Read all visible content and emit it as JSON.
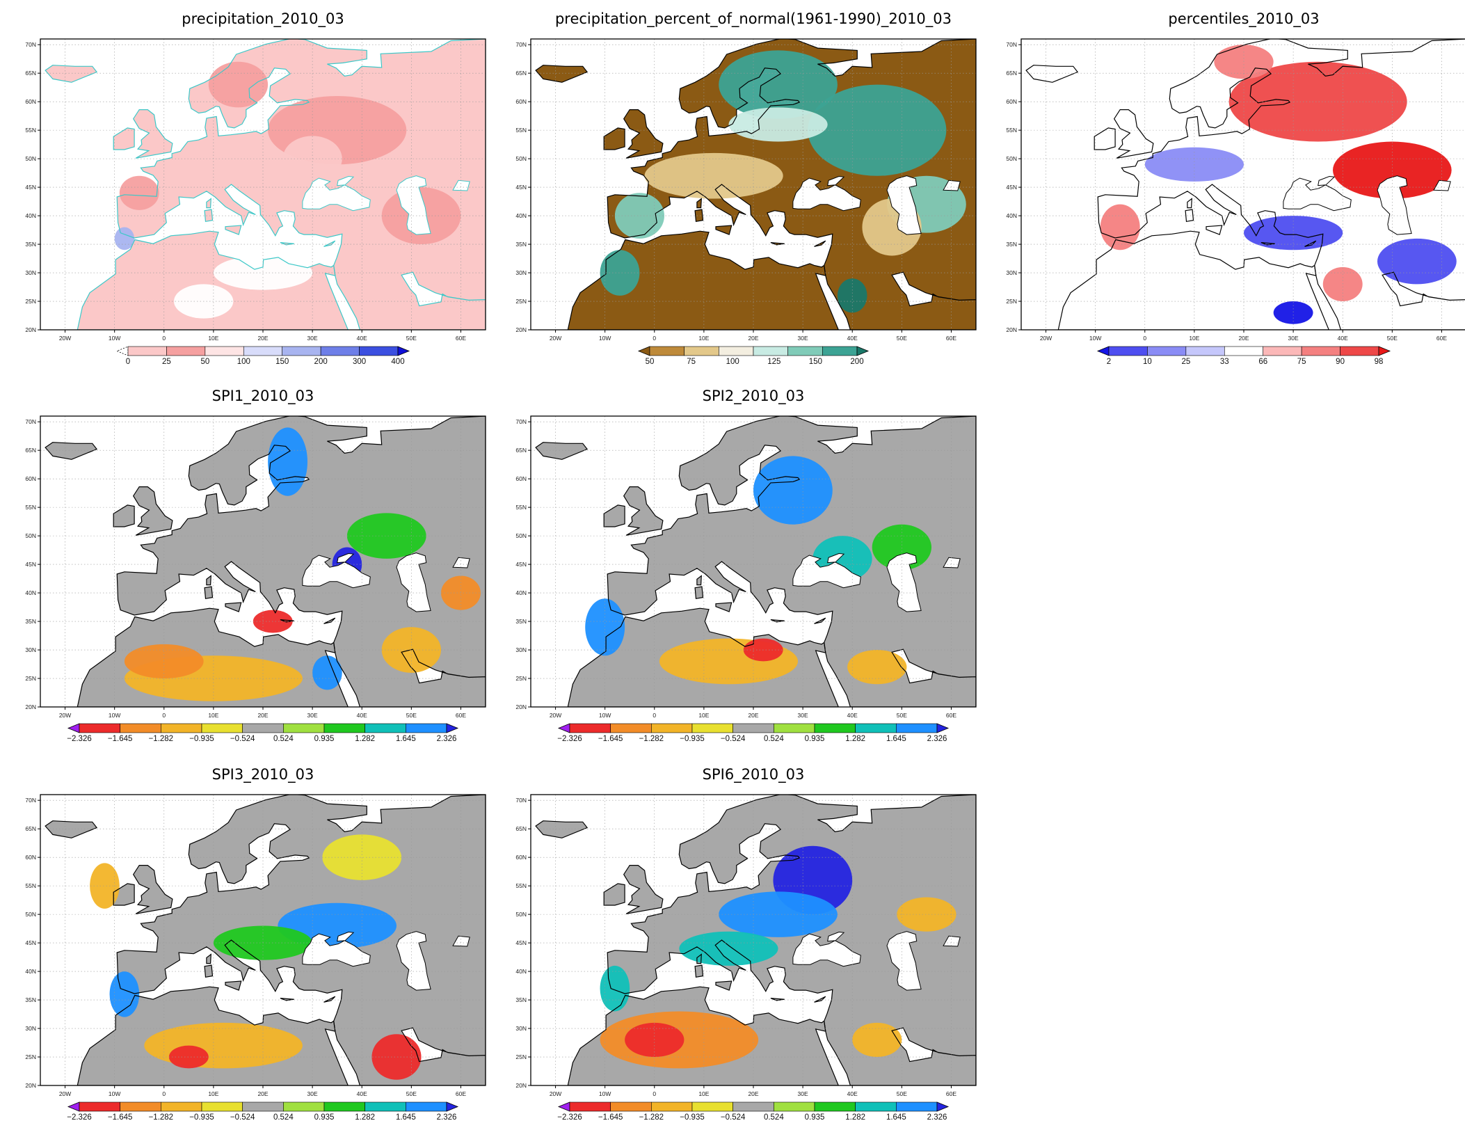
{
  "figure": {
    "lat_ticks": [
      "70N",
      "65N",
      "60N",
      "55N",
      "50N",
      "45N",
      "40N",
      "35N",
      "30N",
      "25N",
      "20N"
    ],
    "lon_ticks": [
      "20W",
      "10W",
      "0",
      "10E",
      "20E",
      "30E",
      "40E",
      "50E",
      "60E"
    ],
    "lon_range": [
      -25,
      65
    ],
    "lat_range": [
      20,
      71
    ],
    "grid": "dotted",
    "coastline_color_precip": "#3cc8c8",
    "coastline_color_other": "#000000"
  },
  "panels": [
    {
      "id": "precip",
      "title": "precipitation_2010_03",
      "colorbar": {
        "labels": [
          "0",
          "25",
          "50",
          "100",
          "150",
          "200",
          "300",
          "400"
        ],
        "colors": [
          "#ffffff",
          "#fbc8c8",
          "#f5a0a0",
          "#fde4e4",
          "#d8dcfa",
          "#a8b4f0",
          "#6e7fe8",
          "#3b4fe0",
          "#1010d8"
        ],
        "left_extend": "dashed",
        "right_extend": "arrow"
      }
    },
    {
      "id": "pnorm",
      "title": "precipitation_percent_of_normal(1961-1990)_2010_03",
      "colorbar": {
        "labels": [
          "50",
          "75",
          "100",
          "125",
          "150",
          "200"
        ],
        "colors": [
          "#8b5a14",
          "#be8a3a",
          "#e3c88a",
          "#f3eee0",
          "#c8ebe3",
          "#80cbb8",
          "#3ca394",
          "#1a7869"
        ],
        "left_extend": "arrow",
        "right_extend": "arrow"
      }
    },
    {
      "id": "perc",
      "title": "percentiles_2010_03",
      "colorbar": {
        "labels": [
          "2",
          "10",
          "25",
          "33",
          "66",
          "75",
          "90",
          "98"
        ],
        "colors": [
          "#1515e6",
          "#4e4ef0",
          "#8a8cf5",
          "#c5c7fb",
          "#ffffff",
          "#fbb8b8",
          "#f48080",
          "#ee4848",
          "#e81818"
        ],
        "left_extend": "arrow",
        "right_extend": "arrow"
      }
    },
    {
      "id": "spi1",
      "title": "SPI1_2010_03",
      "colorbar": {
        "labels": [
          "-2.326",
          "-1.645",
          "-1.282",
          "-0.935",
          "-0.524",
          "0.524",
          "0.935",
          "1.282",
          "1.645",
          "2.326"
        ],
        "colors": [
          "#a020f0",
          "#ec2b2b",
          "#f28c28",
          "#f2b428",
          "#e8e030",
          "#a8a8a8",
          "#a0e040",
          "#20c820",
          "#10c0b8",
          "#1e90ff",
          "#2424e0"
        ],
        "left_extend": "arrow",
        "right_extend": "arrow"
      }
    },
    {
      "id": "spi2",
      "title": "SPI2_2010_03",
      "colorbar": {
        "labels": [
          "-2.326",
          "-1.645",
          "-1.282",
          "-0.935",
          "-0.524",
          "0.524",
          "0.935",
          "1.282",
          "1.645",
          "2.326"
        ],
        "colors": [
          "#a020f0",
          "#ec2b2b",
          "#f28c28",
          "#f2b428",
          "#e8e030",
          "#a8a8a8",
          "#a0e040",
          "#20c820",
          "#10c0b8",
          "#1e90ff",
          "#2424e0"
        ],
        "left_extend": "arrow",
        "right_extend": "arrow"
      }
    },
    {
      "id": "spi3",
      "title": "SPI3_2010_03",
      "colorbar": {
        "labels": [
          "-2.326",
          "-1.645",
          "-1.282",
          "-0.935",
          "-0.524",
          "0.524",
          "0.935",
          "1.282",
          "1.645",
          "2.326"
        ],
        "colors": [
          "#a020f0",
          "#ec2b2b",
          "#f28c28",
          "#f2b428",
          "#e8e030",
          "#a8a8a8",
          "#a0e040",
          "#20c820",
          "#10c0b8",
          "#1e90ff",
          "#2424e0"
        ],
        "left_extend": "arrow",
        "right_extend": "arrow"
      }
    },
    {
      "id": "spi6",
      "title": "SPI6_2010_03",
      "colorbar": {
        "labels": [
          "-2.326",
          "-1.645",
          "-1.282",
          "-0.935",
          "-0.524",
          "0.524",
          "0.935",
          "1.282",
          "1.645",
          "2.326"
        ],
        "colors": [
          "#a020f0",
          "#ec2b2b",
          "#f28c28",
          "#f2b428",
          "#e8e030",
          "#a8a8a8",
          "#a0e040",
          "#20c820",
          "#10c0b8",
          "#1e90ff",
          "#2424e0"
        ],
        "left_extend": "arrow",
        "right_extend": "arrow"
      }
    }
  ]
}
